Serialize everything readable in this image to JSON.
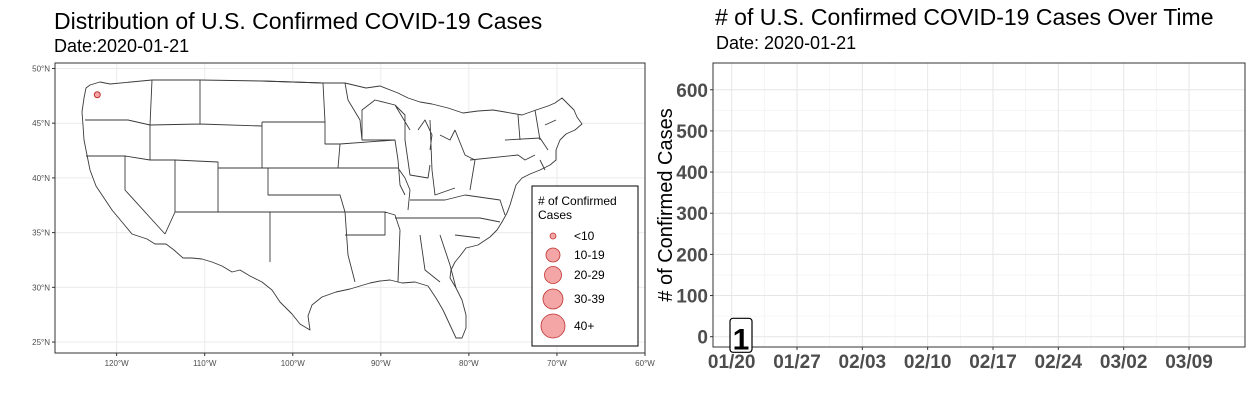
{
  "map_panel": {
    "title": "Distribution of U.S. Confirmed COVID-19 Cases",
    "subtitle": "Date:2020-01-21"
  },
  "line_panel": {
    "title": "# of U.S. Confirmed COVID-19 Cases Over Time",
    "subtitle": "Date: 2020-01-21"
  },
  "chart_data": [
    {
      "type": "scatter",
      "title": "Distribution of U.S. Confirmed COVID-19 Cases",
      "subtitle": "Date:2020-01-21",
      "xlabel": "",
      "ylabel": "",
      "x_ticks": [
        "120°W",
        "110°W",
        "100°W",
        "90°W",
        "80°W",
        "70°W",
        "60°W"
      ],
      "x_tick_values": [
        -120,
        -110,
        -100,
        -90,
        -80,
        -70,
        -60
      ],
      "y_ticks": [
        "25°N",
        "30°N",
        "35°N",
        "40°N",
        "45°N",
        "50°N"
      ],
      "y_tick_values": [
        25,
        30,
        35,
        40,
        45,
        50
      ],
      "xlim": [
        -127,
        -60
      ],
      "ylim": [
        24,
        50.5
      ],
      "grid": true,
      "point_color": "#f08080",
      "points": [
        {
          "lon": -122.2,
          "lat": 47.6,
          "cases": 1,
          "bucket": "<10"
        }
      ],
      "legend": {
        "title": "# of Confirmed Cases",
        "placement": "bottom-right",
        "entries": [
          "<10",
          "10-19",
          "20-29",
          "30-39",
          "40+"
        ]
      }
    },
    {
      "type": "line",
      "title": "# of U.S. Confirmed COVID-19 Cases Over Time",
      "subtitle": "Date: 2020-01-21",
      "xlabel": "",
      "ylabel": "# of Confirmed Cases",
      "x_ticks": [
        "01/20",
        "01/27",
        "02/03",
        "02/10",
        "02/17",
        "02/24",
        "03/02",
        "03/09"
      ],
      "x_tick_dates": [
        "2020-01-20",
        "2020-01-27",
        "2020-02-03",
        "2020-02-10",
        "2020-02-17",
        "2020-02-24",
        "2020-03-02",
        "2020-03-09"
      ],
      "xlim": [
        "2020-01-18",
        "2020-03-15"
      ],
      "y_ticks": [
        0,
        100,
        200,
        300,
        400,
        500,
        600
      ],
      "ylim": [
        -25,
        665
      ],
      "grid": true,
      "series": [
        {
          "points": [
            {
              "date": "2020-01-21",
              "value": 1
            }
          ]
        }
      ],
      "annotations": [
        {
          "date": "2020-01-21",
          "value": 1,
          "text": "1"
        }
      ]
    }
  ]
}
